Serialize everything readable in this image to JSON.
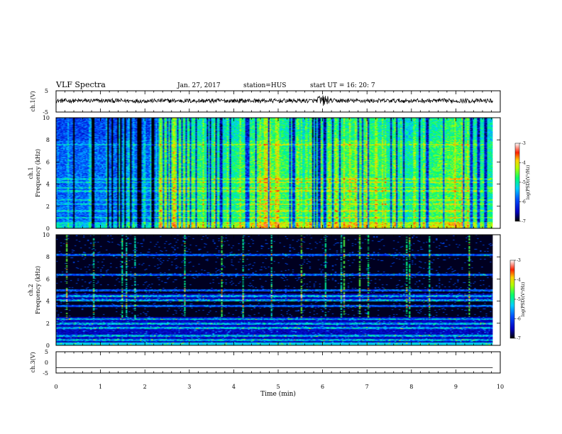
{
  "header": {
    "title": "VLF Spectra",
    "date": "Jan. 27, 2017",
    "station": "station=HUS",
    "start": "start  UT =   16: 20: 7"
  },
  "chart_data": [
    {
      "type": "line",
      "ylabel": "ch.1(V)",
      "ylim": [
        -5,
        5
      ],
      "yticks": [
        "5",
        "-5"
      ],
      "xlim": [
        0,
        10
      ],
      "trace_end_min": 9.83,
      "baseline_v": 0.3,
      "noise_amplitude_v": 1.0
    },
    {
      "type": "heatmap",
      "ylabel": "ch.1",
      "ylabel2": "Frequency (kHz)",
      "ylim": [
        0,
        10
      ],
      "yticks": [
        "0",
        "2",
        "4",
        "6",
        "8",
        "10"
      ],
      "xlim": [
        0,
        10
      ],
      "data_end_min": 9.83,
      "colorbar": {
        "label": "log(PSD)(V²/Hz)",
        "range": [
          -7,
          -3
        ],
        "ticks": [
          "-3",
          "-4",
          "-5",
          "-6",
          "-7"
        ]
      }
    },
    {
      "type": "heatmap",
      "ylabel": "ch.2",
      "ylabel2": "Frequency (kHz)",
      "ylim": [
        0,
        10
      ],
      "yticks": [
        "0",
        "2",
        "4",
        "6",
        "8",
        "10"
      ],
      "xlim": [
        0,
        10
      ],
      "data_end_min": 9.83,
      "colorbar": {
        "label": "log(PSD)(V²/Hz)",
        "range": [
          -7,
          -3
        ],
        "ticks": [
          "-3",
          "-4",
          "-5",
          "-6",
          "-7"
        ]
      }
    },
    {
      "type": "line",
      "ylabel": "ch.3(V)",
      "ylim": [
        -5,
        5
      ],
      "yticks": [
        "5",
        "0",
        "-5"
      ],
      "xlim": [
        0,
        10
      ],
      "trace_end_min": 9.83,
      "value_v": -2.5
    }
  ],
  "x_axis": {
    "label": "Time (min)",
    "ticks": [
      "0",
      "1",
      "2",
      "3",
      "4",
      "5",
      "6",
      "7",
      "8",
      "9",
      "10"
    ]
  }
}
